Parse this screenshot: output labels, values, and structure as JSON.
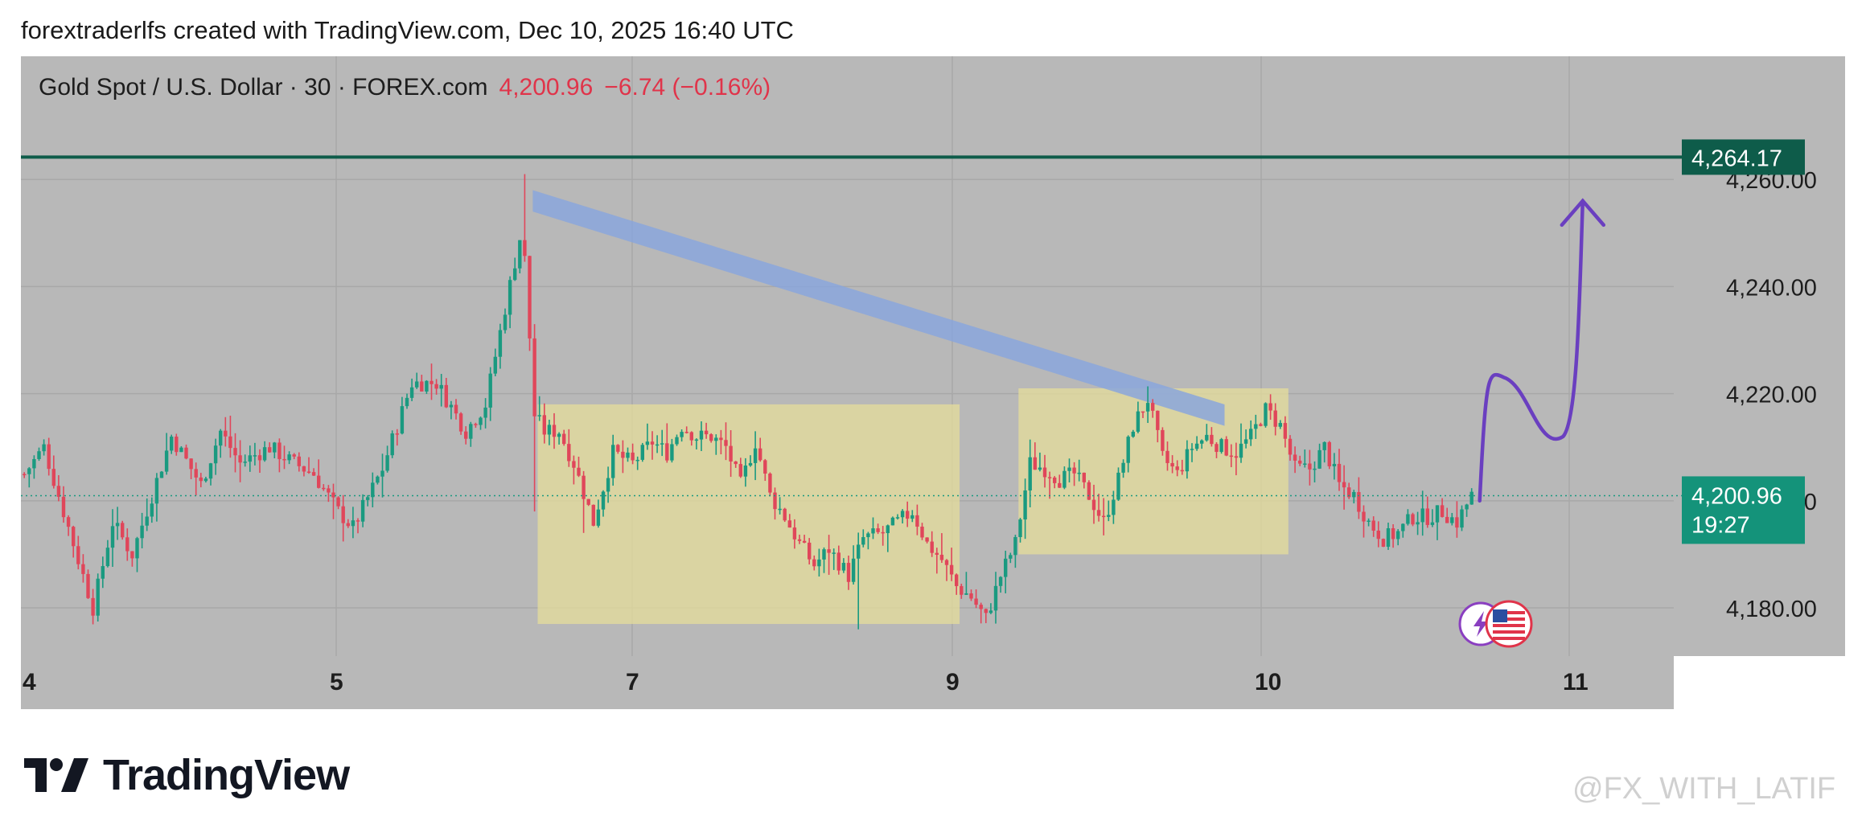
{
  "caption": "forextraderlfs created with TradingView.com, Dec 10, 2025 16:40 UTC",
  "header": {
    "symbol": "Gold Spot / U.S. Dollar · 30 · FOREX.com",
    "price": "4,200.96",
    "change": "−6.74 (−0.16%)"
  },
  "colors": {
    "chart_bg": "#b8b8b8",
    "grid": "#a8a8a8",
    "up": "#1a9a80",
    "down": "#e0465a",
    "level_line": "#0e5c4a",
    "price_tag": "#14937a",
    "zone": "#e8df9a",
    "trend_band": "#8aa6dc",
    "projection": "#6a3fc0",
    "text": "#1d1d1d"
  },
  "footer": {
    "brand": "TradingView",
    "watermark": "@FX_WITH_LATIF"
  },
  "chart_data": {
    "type": "candlestick",
    "timeframe": "30",
    "x_tick_labels": [
      "4",
      "5",
      "7",
      "9",
      "10",
      "11"
    ],
    "y_tick_labels": [
      "4,180.00",
      "4,200.00",
      "4,220.00",
      "4,240.00",
      "4,260.00"
    ],
    "y_ticks": [
      4180,
      4200,
      4220,
      4240,
      4260
    ],
    "ylim": [
      4171,
      4283
    ],
    "resistance_level": {
      "value": 4264.17,
      "label": "4,264.17"
    },
    "last_price": {
      "value": 4200.96,
      "label": "4,200.96",
      "countdown": "19:27"
    },
    "candle_path": [
      [
        0,
        4205
      ],
      [
        4,
        4210
      ],
      [
        10,
        4192
      ],
      [
        14,
        4180
      ],
      [
        18,
        4196
      ],
      [
        22,
        4190
      ],
      [
        30,
        4212
      ],
      [
        36,
        4203
      ],
      [
        40,
        4213
      ],
      [
        44,
        4207
      ],
      [
        50,
        4210
      ],
      [
        55,
        4207
      ],
      [
        59,
        4205
      ],
      [
        64,
        4198
      ],
      [
        67,
        4195
      ],
      [
        73,
        4206
      ],
      [
        79,
        4222
      ],
      [
        84,
        4222
      ],
      [
        90,
        4213
      ],
      [
        94,
        4218
      ],
      [
        98,
        4236
      ],
      [
        101,
        4249
      ],
      [
        102,
        4245
      ],
      [
        104,
        4216
      ],
      [
        106,
        4213
      ],
      [
        109,
        4213
      ],
      [
        112,
        4207
      ],
      [
        116,
        4196
      ],
      [
        120,
        4209
      ],
      [
        124,
        4207
      ],
      [
        128,
        4211
      ],
      [
        131,
        4209
      ],
      [
        134,
        4214
      ],
      [
        137,
        4212
      ],
      [
        140,
        4212
      ],
      [
        143,
        4210
      ],
      [
        146,
        4203
      ],
      [
        149,
        4211
      ],
      [
        152,
        4201
      ],
      [
        155,
        4197
      ],
      [
        158,
        4192
      ],
      [
        161,
        4188
      ],
      [
        164,
        4191
      ],
      [
        168,
        4186
      ],
      [
        171,
        4193
      ],
      [
        175,
        4194
      ],
      [
        178,
        4196
      ],
      [
        181,
        4198
      ],
      [
        184,
        4192
      ],
      [
        187,
        4189
      ],
      [
        190,
        4184
      ],
      [
        193,
        4182
      ],
      [
        196,
        4178
      ],
      [
        199,
        4186
      ],
      [
        202,
        4192
      ],
      [
        205,
        4207
      ],
      [
        208,
        4206
      ],
      [
        211,
        4204
      ],
      [
        214,
        4205
      ],
      [
        217,
        4201
      ],
      [
        220,
        4196
      ],
      [
        223,
        4204
      ],
      [
        226,
        4214
      ],
      [
        229,
        4219
      ],
      [
        232,
        4208
      ],
      [
        235,
        4205
      ],
      [
        238,
        4210
      ],
      [
        241,
        4212
      ],
      [
        244,
        4210
      ],
      [
        247,
        4209
      ],
      [
        250,
        4212
      ],
      [
        253,
        4217
      ],
      [
        256,
        4214
      ],
      [
        259,
        4206
      ],
      [
        262,
        4206
      ],
      [
        265,
        4210
      ],
      [
        268,
        4203
      ],
      [
        271,
        4201
      ],
      [
        274,
        4196
      ],
      [
        277,
        4193
      ],
      [
        280,
        4194
      ],
      [
        283,
        4197
      ],
      [
        286,
        4197
      ],
      [
        289,
        4198
      ],
      [
        292,
        4196
      ],
      [
        295,
        4201
      ]
    ],
    "zones": [
      {
        "x_start": 105,
        "x_end": 191,
        "y_low": 4177,
        "y_high": 4218
      },
      {
        "x_start": 203,
        "x_end": 258,
        "y_low": 4190,
        "y_high": 4221
      }
    ],
    "trend_band": {
      "from": [
        104,
        4256
      ],
      "to": [
        245,
        4216
      ],
      "thickness": 4
    },
    "projection": [
      [
        297,
        4200
      ],
      [
        302,
        4223
      ],
      [
        314,
        4212
      ],
      [
        318,
        4256
      ]
    ]
  }
}
